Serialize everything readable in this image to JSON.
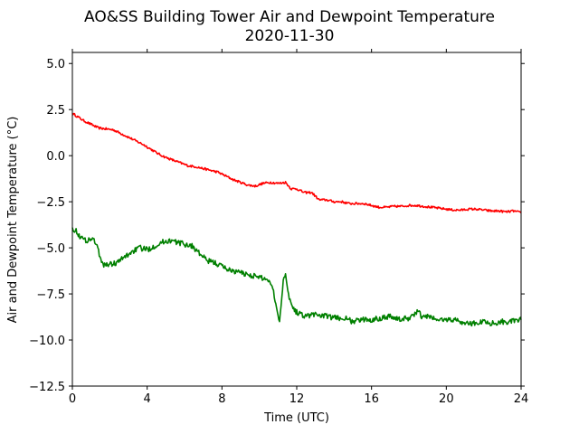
{
  "chart_data": {
    "type": "line",
    "title": "AO&SS Building Tower Air and Dewpoint Temperature",
    "subtitle": "2020-11-30",
    "xlabel": "Time (UTC)",
    "ylabel": "Air and Dewpoint Temperature (°C)",
    "xlim": [
      0,
      24
    ],
    "ylim": [
      -12.5,
      5.6
    ],
    "xticks": [
      0,
      4,
      8,
      12,
      16,
      20,
      24
    ],
    "xtick_labels": [
      "0",
      "4",
      "8",
      "12",
      "16",
      "20",
      "24"
    ],
    "yticks": [
      5.0,
      2.5,
      0.0,
      -2.5,
      -5.0,
      -7.5,
      -10.0,
      -12.5
    ],
    "ytick_labels": [
      "5.0",
      "2.5",
      "0.0",
      "−2.5",
      "−5.0",
      "−7.5",
      "−10.0",
      "−12.5"
    ],
    "grid": false,
    "legend": false,
    "series": [
      {
        "color": "#ff0000",
        "x": [
          0,
          0.3,
          0.6,
          1.0,
          1.4,
          1.8,
          2.2,
          2.6,
          3.0,
          3.4,
          3.8,
          4.2,
          4.6,
          5.0,
          5.4,
          5.8,
          6.2,
          6.6,
          7.0,
          7.4,
          7.8,
          8.2,
          8.6,
          9.0,
          9.4,
          9.8,
          10.2,
          10.6,
          11.0,
          11.4,
          11.7,
          12.0,
          12.4,
          12.8,
          13.2,
          13.6,
          14.0,
          14.4,
          14.8,
          15.2,
          15.6,
          16.0,
          16.4,
          16.8,
          17.2,
          17.6,
          18.0,
          18.4,
          18.8,
          19.2,
          19.6,
          20.0,
          20.4,
          20.8,
          21.2,
          21.6,
          22.0,
          22.4,
          22.8,
          23.2,
          23.6,
          24.0
        ],
        "y": [
          2.3,
          2.1,
          1.9,
          1.7,
          1.5,
          1.45,
          1.4,
          1.2,
          1.0,
          0.8,
          0.6,
          0.35,
          0.1,
          -0.1,
          -0.25,
          -0.4,
          -0.55,
          -0.6,
          -0.7,
          -0.8,
          -0.9,
          -1.1,
          -1.3,
          -1.45,
          -1.6,
          -1.65,
          -1.5,
          -1.45,
          -1.5,
          -1.45,
          -1.8,
          -1.8,
          -2.0,
          -2.0,
          -2.4,
          -2.4,
          -2.5,
          -2.5,
          -2.6,
          -2.6,
          -2.6,
          -2.7,
          -2.8,
          -2.8,
          -2.75,
          -2.75,
          -2.7,
          -2.7,
          -2.75,
          -2.8,
          -2.85,
          -2.9,
          -2.95,
          -2.95,
          -2.9,
          -2.9,
          -2.95,
          -3.0,
          -3.0,
          -3.05,
          -3.0,
          -3.1
        ],
        "noise": 0.06
      },
      {
        "color": "#008000",
        "x": [
          0,
          0.2,
          0.5,
          0.8,
          1.0,
          1.2,
          1.4,
          1.6,
          2.0,
          2.4,
          2.8,
          3.2,
          3.6,
          4.0,
          4.4,
          4.8,
          5.2,
          5.6,
          6.0,
          6.4,
          6.8,
          7.2,
          7.6,
          8.0,
          8.4,
          8.8,
          9.2,
          9.6,
          10.0,
          10.4,
          10.7,
          10.9,
          11.0,
          11.1,
          11.3,
          11.4,
          11.5,
          11.7,
          12.0,
          12.5,
          13.0,
          13.5,
          14.0,
          14.5,
          15.0,
          15.5,
          16.0,
          16.5,
          17.0,
          17.5,
          18.0,
          18.3,
          18.5,
          18.7,
          19.0,
          19.5,
          20.0,
          20.5,
          21.0,
          21.5,
          22.0,
          22.5,
          23.0,
          23.5,
          24.0
        ],
        "y": [
          -3.9,
          -4.1,
          -4.5,
          -4.6,
          -4.5,
          -4.6,
          -5.2,
          -5.9,
          -5.9,
          -5.8,
          -5.5,
          -5.2,
          -5.0,
          -5.1,
          -4.9,
          -4.7,
          -4.6,
          -4.7,
          -4.8,
          -4.9,
          -5.3,
          -5.7,
          -5.8,
          -6.0,
          -6.2,
          -6.3,
          -6.4,
          -6.5,
          -6.6,
          -6.7,
          -7.0,
          -8.2,
          -8.7,
          -8.9,
          -6.5,
          -6.4,
          -7.2,
          -8.1,
          -8.5,
          -8.7,
          -8.6,
          -8.7,
          -8.8,
          -8.8,
          -9.0,
          -8.9,
          -8.9,
          -8.8,
          -8.7,
          -8.9,
          -8.8,
          -8.6,
          -8.4,
          -8.8,
          -8.7,
          -8.9,
          -8.9,
          -8.9,
          -9.1,
          -9.1,
          -9.0,
          -9.1,
          -9.0,
          -9.0,
          -8.9
        ],
        "noise": 0.15
      }
    ]
  }
}
